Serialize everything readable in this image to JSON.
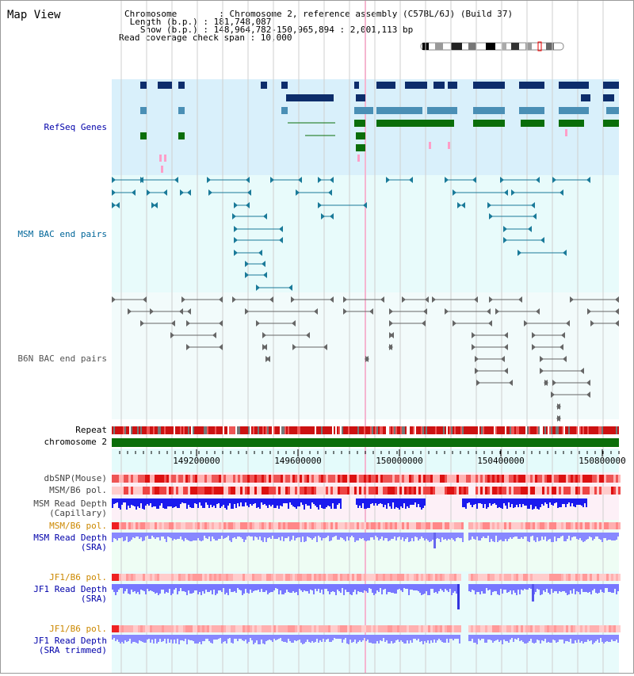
{
  "title": "Map View",
  "header": {
    "lines": [
      "Chromosome        : Chromosome 2, reference assembly (C57BL/6J) (Build 37)",
      " Length (b.p.) : 181,748,087",
      "   Show (b.p.) : 148,964,782-150,965,894 : 2,001,113 bp",
      "Read coverage check span : 10,000"
    ]
  },
  "tracks": {
    "refseq": {
      "label": "RefSeq Genes",
      "color": "#0000aa"
    },
    "msm_bac": {
      "label": "MSM BAC end pairs",
      "color": "#006699"
    },
    "b6n_bac": {
      "label": "B6N BAC end pairs",
      "color": "#555555"
    },
    "repeat": {
      "label": "Repeat"
    },
    "chromosome": {
      "label": "chromosome 2"
    },
    "dbsnp": {
      "label": "dbSNP(Mouse)"
    },
    "msm_b6_pol_1": {
      "label": "MSM/B6 pol."
    },
    "msm_read_depth_cap": {
      "label": "MSM Read Depth\n(Capillary)"
    },
    "msm_b6_pol_2": {
      "label": "MSM/B6 pol.",
      "color": "#cc8800"
    },
    "msm_read_depth_sra": {
      "label": "MSM Read Depth\n(SRA)",
      "color": "#0000aa"
    },
    "jf1_b6_pol_1": {
      "label": "JF1/B6 pol.",
      "color": "#cc8800"
    },
    "jf1_read_depth_sra": {
      "label": "JF1 Read Depth\n(SRA)",
      "color": "#0000aa"
    },
    "jf1_b6_pol_2": {
      "label": "JF1/B6 pol.",
      "color": "#cc8800"
    },
    "jf1_read_depth_trim": {
      "label": "JF1 Read Depth\n(SRA trimmed)",
      "color": "#0000aa"
    }
  },
  "axis": {
    "ticks": [
      "149200000",
      "149600000",
      "150000000",
      "150400000",
      "150800000"
    ]
  },
  "colors": {
    "refseq_dark": "#0d2d6b",
    "refseq_mid": "#4a8fb5",
    "refseq_green": "#0a6e0a",
    "pink": "#ff9ec8",
    "msm_teal": "#1a7a99",
    "b6n_gray": "#666666"
  }
}
